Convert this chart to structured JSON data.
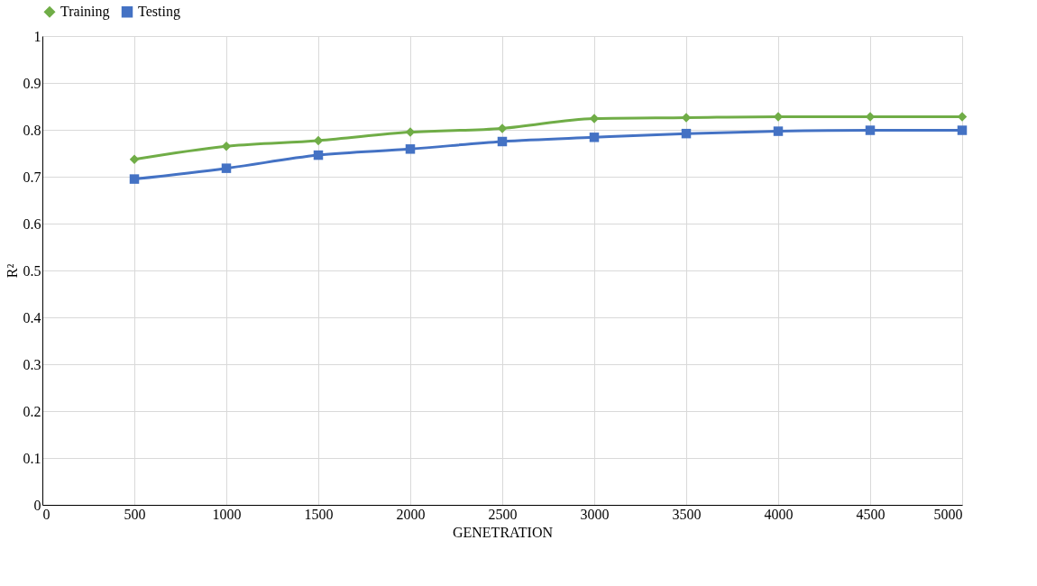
{
  "chart_data": {
    "type": "line",
    "xlabel": "GENETRATION",
    "ylabel": "R²",
    "x": [
      500,
      1000,
      1500,
      2000,
      2500,
      3000,
      3500,
      4000,
      4500,
      5000
    ],
    "series": [
      {
        "name": "Training",
        "color": "#70ad47",
        "marker": "diamond",
        "values": [
          0.737,
          0.765,
          0.777,
          0.795,
          0.803,
          0.824,
          0.826,
          0.828,
          0.828,
          0.828
        ]
      },
      {
        "name": "Testing",
        "color": "#4472c4",
        "marker": "square",
        "values": [
          0.695,
          0.718,
          0.746,
          0.759,
          0.775,
          0.784,
          0.792,
          0.797,
          0.799,
          0.799
        ]
      }
    ],
    "xlim": [
      0,
      5000
    ],
    "xticks": [
      0,
      500,
      1000,
      1500,
      2000,
      2500,
      3000,
      3500,
      4000,
      4500,
      5000
    ],
    "ylim": [
      0,
      1
    ],
    "yticks": [
      0,
      0.1,
      0.2,
      0.3,
      0.4,
      0.5,
      0.6,
      0.7,
      0.8,
      0.9,
      1
    ],
    "grid": true,
    "legend": "top",
    "line_style": "solid"
  }
}
